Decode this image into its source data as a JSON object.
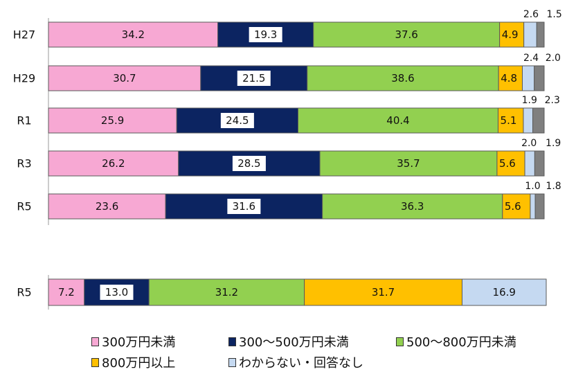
{
  "chart_data": {
    "type": "bar",
    "orientation": "horizontal-stacked-100",
    "legend_position": "bottom",
    "series": [
      {
        "name": "300万円未満",
        "color": "#f7a8d3"
      },
      {
        "name": "300〜500万円未満",
        "color": "#0c2461"
      },
      {
        "name": "500〜800万円未満",
        "color": "#92d050"
      },
      {
        "name": "800万円以上",
        "color": "#ffc000"
      },
      {
        "name": "わからない・回答なし",
        "color": "#c5d9f1"
      },
      {
        "name": "",
        "color": "#7f7f7f"
      }
    ],
    "groups": [
      {
        "categories": [
          "H27",
          "H29",
          "R1",
          "R3",
          "R5"
        ],
        "values": [
          [
            34.2,
            19.3,
            37.6,
            4.9,
            2.6,
            1.5
          ],
          [
            30.7,
            21.5,
            38.6,
            4.8,
            2.4,
            2.0
          ],
          [
            25.9,
            24.5,
            40.4,
            5.1,
            1.9,
            2.3
          ],
          [
            26.2,
            28.5,
            35.7,
            5.6,
            2.0,
            1.9
          ],
          [
            23.6,
            31.6,
            36.3,
            5.6,
            1.0,
            1.8
          ]
        ],
        "labels": [
          [
            "34.2",
            "19.3",
            "37.6",
            "4.9",
            "2.6",
            "1.5"
          ],
          [
            "30.7",
            "21.5",
            "38.6",
            "4.8",
            "2.4",
            "2.0"
          ],
          [
            "25.9",
            "24.5",
            "40.4",
            "5.1",
            "1.9",
            "2.3"
          ],
          [
            "26.2",
            "28.5",
            "35.7",
            "5.6",
            "2.0",
            "1.9"
          ],
          [
            "23.6",
            "31.6",
            "36.3",
            "5.6",
            "1.0",
            "1.8"
          ]
        ]
      },
      {
        "categories": [
          "R5"
        ],
        "values": [
          [
            7.2,
            13.0,
            31.2,
            31.7,
            16.9
          ]
        ],
        "labels": [
          [
            "7.2",
            "13.0",
            "31.2",
            "31.7",
            "16.9"
          ]
        ]
      }
    ]
  },
  "legend": {
    "row1": [
      "300万円未満",
      "300〜500万円未満",
      "500〜800万円未満"
    ],
    "row2": [
      "800万円以上",
      "わからない・回答なし"
    ]
  }
}
